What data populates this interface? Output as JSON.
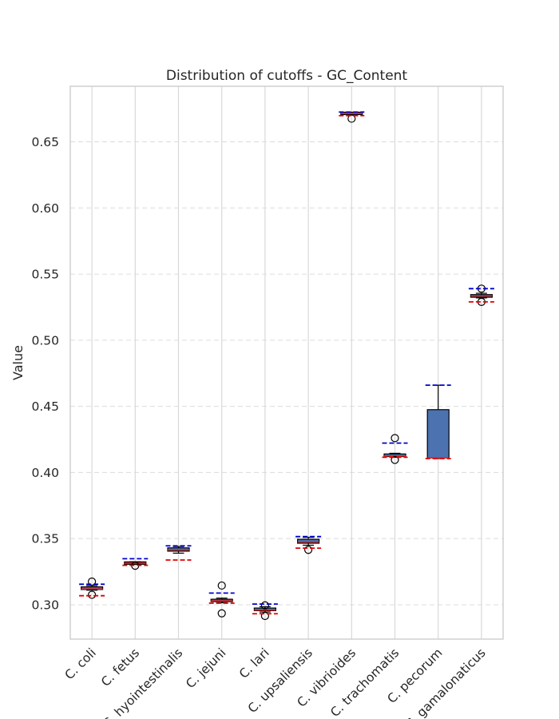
{
  "chart_data": {
    "type": "box",
    "title": "Distribution of cutoffs - GC_Content",
    "ylabel": "Value",
    "xlabel": "",
    "ylim": [
      0.274,
      0.692
    ],
    "yticks": [
      0.3,
      0.35,
      0.4,
      0.45,
      0.5,
      0.55,
      0.6,
      0.65
    ],
    "ytick_labels": [
      "0.30",
      "0.35",
      "0.40",
      "0.45",
      "0.50",
      "0.55",
      "0.60",
      "0.65"
    ],
    "grid": true,
    "box_color": "#4c72b0",
    "median_color": "#d62728",
    "upper_cutoff_color": "#0000cc",
    "lower_cutoff_color": "#e00000",
    "categories": [
      "C. coli",
      "C. fetus",
      "C. hyointestinalis",
      "C. jejuni",
      "C. lari",
      "C. upsaliensis",
      "C. vibrioides",
      "C. trachomatis",
      "C. pecorum",
      "C. gamalonaticus"
    ],
    "boxes": [
      {
        "whisker_low": 0.311,
        "q1": 0.3115,
        "median": 0.312,
        "q3": 0.3135,
        "whisker_high": 0.3145,
        "outliers": [
          0.3175,
          0.3075
        ],
        "upper_cutoff": 0.3155,
        "lower_cutoff": 0.3068
      },
      {
        "whisker_low": 0.3305,
        "q1": 0.331,
        "median": 0.3315,
        "q3": 0.332,
        "whisker_high": 0.3325,
        "outliers": [
          0.3295
        ],
        "upper_cutoff": 0.3348,
        "lower_cutoff": 0.3298
      },
      {
        "whisker_low": 0.339,
        "q1": 0.3405,
        "median": 0.3415,
        "q3": 0.343,
        "whisker_high": 0.344,
        "outliers": [],
        "upper_cutoff": 0.3445,
        "lower_cutoff": 0.3338
      },
      {
        "whisker_low": 0.3015,
        "q1": 0.3025,
        "median": 0.303,
        "q3": 0.304,
        "whisker_high": 0.305,
        "outliers": [
          0.3145,
          0.2935
        ],
        "upper_cutoff": 0.3088,
        "lower_cutoff": 0.3012
      },
      {
        "whisker_low": 0.2945,
        "q1": 0.2955,
        "median": 0.296,
        "q3": 0.2975,
        "whisker_high": 0.2985,
        "outliers": [
          0.2995,
          0.2915
        ],
        "upper_cutoff": 0.3005,
        "lower_cutoff": 0.2932
      },
      {
        "whisker_low": 0.345,
        "q1": 0.3465,
        "median": 0.3475,
        "q3": 0.3495,
        "whisker_high": 0.351,
        "outliers": [
          0.3415
        ],
        "upper_cutoff": 0.3515,
        "lower_cutoff": 0.3428
      },
      {
        "whisker_low": 0.671,
        "q1": 0.6712,
        "median": 0.6715,
        "q3": 0.6718,
        "whisker_high": 0.672,
        "outliers": [
          0.6675
        ],
        "upper_cutoff": 0.6725,
        "lower_cutoff": 0.6698
      },
      {
        "whisker_low": 0.4115,
        "q1": 0.412,
        "median": 0.4125,
        "q3": 0.414,
        "whisker_high": 0.4145,
        "outliers": [
          0.426,
          0.4095
        ],
        "upper_cutoff": 0.4222,
        "lower_cutoff": 0.4115
      },
      {
        "whisker_low": 0.4105,
        "q1": 0.411,
        "median": 0.411,
        "q3": 0.4475,
        "whisker_high": 0.466,
        "outliers": [],
        "upper_cutoff": 0.466,
        "lower_cutoff": 0.4105
      },
      {
        "whisker_low": 0.532,
        "q1": 0.5325,
        "median": 0.5335,
        "q3": 0.5345,
        "whisker_high": 0.5355,
        "outliers": [
          0.539,
          0.529
        ],
        "upper_cutoff": 0.539,
        "lower_cutoff": 0.529
      }
    ]
  }
}
